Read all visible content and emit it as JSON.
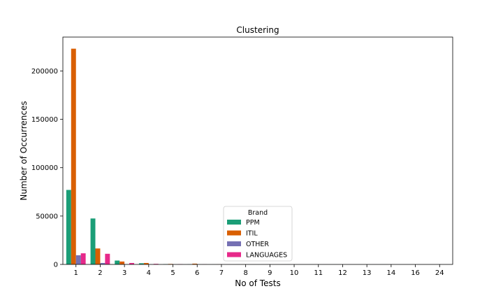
{
  "chart_data": {
    "type": "bar",
    "title": "Clustering",
    "xlabel": "No of Tests",
    "ylabel": "Number of Occurrences",
    "categories": [
      "1",
      "2",
      "3",
      "4",
      "5",
      "6",
      "7",
      "8",
      "9",
      "10",
      "11",
      "12",
      "13",
      "14",
      "16",
      "24"
    ],
    "ylim": [
      0,
      235000
    ],
    "yticks": [
      0,
      50000,
      100000,
      150000,
      200000
    ],
    "grid": false,
    "legend": {
      "title": "Brand",
      "placement": "lower-center"
    },
    "series": [
      {
        "name": "PPM",
        "color": "#1b9e77",
        "values": [
          77000,
          47500,
          4000,
          1200,
          300,
          150,
          60,
          30,
          20,
          15,
          10,
          8,
          6,
          5,
          4,
          3
        ]
      },
      {
        "name": "ITIL",
        "color": "#d95f02",
        "values": [
          223000,
          16500,
          3000,
          1500,
          500,
          800,
          100,
          60,
          40,
          25,
          15,
          10,
          8,
          5,
          4,
          3
        ]
      },
      {
        "name": "OTHER",
        "color": "#7570b3",
        "values": [
          9500,
          1500,
          300,
          150,
          80,
          40,
          20,
          10,
          8,
          5,
          4,
          3,
          2,
          2,
          1,
          1
        ]
      },
      {
        "name": "LANGUAGES",
        "color": "#e7298a",
        "values": [
          11500,
          11000,
          1500,
          600,
          250,
          120,
          50,
          30,
          20,
          10,
          8,
          5,
          4,
          3,
          2,
          1
        ]
      }
    ]
  }
}
